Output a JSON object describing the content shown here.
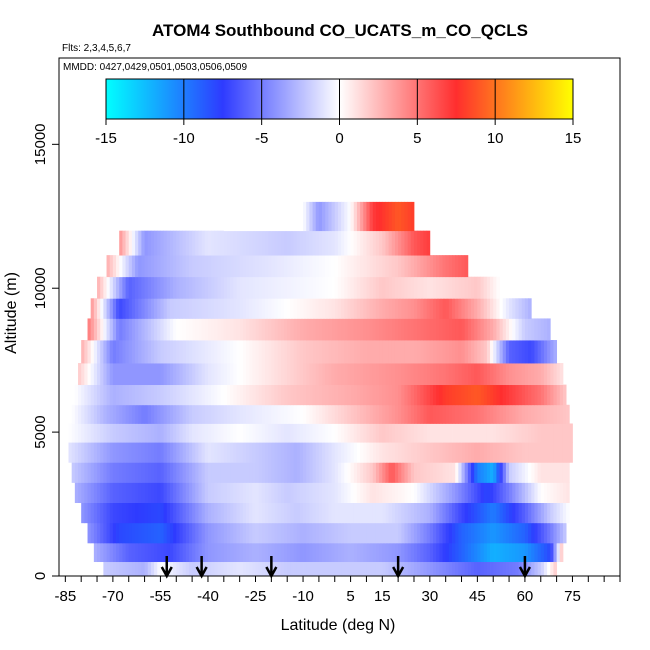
{
  "chart_data": {
    "type": "heatmap",
    "title": "ATOM4 Southbound CO_UCATS_m_CO_QCLS",
    "flights_label": "Flts: 2,3,4,5,6,7",
    "dates_label": "MMDD: 0427,0429,0501,0503,0506,0509",
    "xlabel": "Latitude (deg N)",
    "ylabel": "Altitude (m)",
    "xlim": [
      -87,
      90
    ],
    "ylim": [
      0,
      18000
    ],
    "x_ticks": [
      -85,
      -70,
      -55,
      -40,
      -25,
      -10,
      5,
      15,
      30,
      45,
      60,
      75
    ],
    "x_minor_step": 5,
    "y_ticks": [
      0,
      5000,
      10000,
      15000
    ],
    "colorbar": {
      "range": [
        -15,
        15
      ],
      "ticks": [
        -15,
        -10,
        -5,
        0,
        5,
        10,
        15
      ],
      "colors": [
        "#00ffff",
        "#2e3bff",
        "#ffffff",
        "#ff2e2e",
        "#ffff00"
      ]
    },
    "arrows_latitude": [
      -53,
      -42,
      -20,
      20,
      60
    ],
    "bands": [
      {
        "alt": 12500,
        "lat_min": -35,
        "lat_max": 25,
        "values": [
          [
            -35,
            0
          ],
          [
            -10,
            0
          ],
          [
            -5,
            -4
          ],
          [
            5,
            0
          ],
          [
            12,
            7
          ],
          [
            20,
            9
          ],
          [
            25,
            8
          ]
        ]
      },
      {
        "alt": 11500,
        "lat_min": -68,
        "lat_max": 30,
        "values": [
          [
            -68,
            4
          ],
          [
            -60,
            -4
          ],
          [
            -40,
            -1
          ],
          [
            -15,
            -2
          ],
          [
            0,
            -1
          ],
          [
            15,
            2
          ],
          [
            25,
            6
          ],
          [
            30,
            7
          ]
        ]
      },
      {
        "alt": 10800,
        "lat_min": -72,
        "lat_max": 42,
        "values": [
          [
            -72,
            3
          ],
          [
            -62,
            -4
          ],
          [
            -45,
            -2
          ],
          [
            -20,
            -1
          ],
          [
            0,
            0
          ],
          [
            20,
            2
          ],
          [
            35,
            5
          ],
          [
            42,
            6
          ]
        ]
      },
      {
        "alt": 10000,
        "lat_min": -75,
        "lat_max": 52,
        "values": [
          [
            -75,
            3
          ],
          [
            -65,
            -6
          ],
          [
            -50,
            -3
          ],
          [
            -30,
            -1
          ],
          [
            0,
            0
          ],
          [
            15,
            2
          ],
          [
            30,
            1
          ],
          [
            45,
            2
          ],
          [
            52,
            0
          ]
        ]
      },
      {
        "alt": 9300,
        "lat_min": -77,
        "lat_max": 62,
        "values": [
          [
            -77,
            4
          ],
          [
            -68,
            -7
          ],
          [
            -52,
            -2
          ],
          [
            -30,
            -1
          ],
          [
            0,
            1
          ],
          [
            15,
            3
          ],
          [
            25,
            4
          ],
          [
            35,
            6
          ],
          [
            45,
            3
          ],
          [
            55,
            -1
          ],
          [
            62,
            -3
          ]
        ]
      },
      {
        "alt": 8600,
        "lat_min": -78,
        "lat_max": 68,
        "values": [
          [
            -78,
            5
          ],
          [
            -68,
            -5
          ],
          [
            -50,
            0
          ],
          [
            -30,
            1
          ],
          [
            -10,
            3
          ],
          [
            10,
            4
          ],
          [
            25,
            5
          ],
          [
            40,
            6
          ],
          [
            50,
            3
          ],
          [
            60,
            -2
          ],
          [
            68,
            -3
          ]
        ]
      },
      {
        "alt": 7800,
        "lat_min": -80,
        "lat_max": 70,
        "values": [
          [
            -80,
            3
          ],
          [
            -70,
            -5
          ],
          [
            -55,
            -2
          ],
          [
            -30,
            0
          ],
          [
            -10,
            2
          ],
          [
            10,
            3
          ],
          [
            25,
            3
          ],
          [
            40,
            4
          ],
          [
            48,
            2
          ],
          [
            55,
            -6
          ],
          [
            62,
            -7
          ],
          [
            70,
            -3
          ]
        ]
      },
      {
        "alt": 7000,
        "lat_min": -81,
        "lat_max": 72,
        "values": [
          [
            -81,
            2
          ],
          [
            -70,
            -4
          ],
          [
            -55,
            -4
          ],
          [
            -40,
            -1
          ],
          [
            -20,
            1
          ],
          [
            0,
            3
          ],
          [
            20,
            4
          ],
          [
            35,
            5
          ],
          [
            45,
            6
          ],
          [
            55,
            4
          ],
          [
            65,
            3
          ],
          [
            72,
            1
          ]
        ]
      },
      {
        "alt": 6300,
        "lat_min": -82,
        "lat_max": 73,
        "values": [
          [
            -82,
            0
          ],
          [
            -70,
            -3
          ],
          [
            -55,
            -2
          ],
          [
            -35,
            0
          ],
          [
            -15,
            2
          ],
          [
            5,
            3
          ],
          [
            20,
            4
          ],
          [
            35,
            8
          ],
          [
            45,
            9
          ],
          [
            55,
            7
          ],
          [
            65,
            5
          ],
          [
            73,
            2
          ]
        ]
      },
      {
        "alt": 5600,
        "lat_min": -83,
        "lat_max": 74,
        "values": [
          [
            -83,
            0
          ],
          [
            -72,
            -3
          ],
          [
            -60,
            -5
          ],
          [
            -45,
            -2
          ],
          [
            -30,
            -1
          ],
          [
            -10,
            0
          ],
          [
            5,
            2
          ],
          [
            20,
            4
          ],
          [
            30,
            6
          ],
          [
            45,
            5
          ],
          [
            60,
            3
          ],
          [
            74,
            2
          ]
        ]
      },
      {
        "alt": 5000,
        "lat_min": -84,
        "lat_max": 75,
        "values": [
          [
            -84,
            0
          ],
          [
            -70,
            -2
          ],
          [
            -55,
            -3
          ],
          [
            -45,
            -1
          ],
          [
            -30,
            0
          ],
          [
            -15,
            -1
          ],
          [
            0,
            0
          ],
          [
            15,
            2
          ],
          [
            30,
            1
          ],
          [
            50,
            1
          ],
          [
            65,
            2
          ],
          [
            75,
            2
          ]
        ]
      },
      {
        "alt": 4300,
        "lat_min": -84,
        "lat_max": 75,
        "values": [
          [
            -84,
            -1
          ],
          [
            -70,
            -4
          ],
          [
            -55,
            -5
          ],
          [
            -40,
            -1
          ],
          [
            -25,
            -2
          ],
          [
            -12,
            -3
          ],
          [
            0,
            -1
          ],
          [
            15,
            1
          ],
          [
            30,
            2
          ],
          [
            45,
            3
          ],
          [
            60,
            2
          ],
          [
            75,
            2
          ]
        ]
      },
      {
        "alt": 3600,
        "lat_min": -83,
        "lat_max": 74,
        "values": [
          [
            -83,
            -2
          ],
          [
            -70,
            -5
          ],
          [
            -55,
            -6
          ],
          [
            -40,
            -2
          ],
          [
            -25,
            -2
          ],
          [
            -12,
            -3
          ],
          [
            0,
            -1
          ],
          [
            12,
            2
          ],
          [
            18,
            6
          ],
          [
            25,
            2
          ],
          [
            38,
            1
          ],
          [
            45,
            -10
          ],
          [
            50,
            -12
          ],
          [
            55,
            -2
          ],
          [
            65,
            1
          ],
          [
            74,
            1
          ]
        ]
      },
      {
        "alt": 2900,
        "lat_min": -82,
        "lat_max": 74,
        "values": [
          [
            -82,
            -3
          ],
          [
            -70,
            -6
          ],
          [
            -55,
            -7
          ],
          [
            -40,
            -2
          ],
          [
            -25,
            -1
          ],
          [
            -15,
            -2
          ],
          [
            0,
            -1
          ],
          [
            12,
            1
          ],
          [
            25,
            0
          ],
          [
            38,
            -4
          ],
          [
            48,
            -8
          ],
          [
            55,
            -5
          ],
          [
            65,
            0
          ],
          [
            74,
            1
          ]
        ]
      },
      {
        "alt": 2200,
        "lat_min": -80,
        "lat_max": 74,
        "values": [
          [
            -80,
            -4
          ],
          [
            -70,
            -7
          ],
          [
            -55,
            -8
          ],
          [
            -40,
            -3
          ],
          [
            -25,
            -1
          ],
          [
            -12,
            -2
          ],
          [
            0,
            -1
          ],
          [
            15,
            -1
          ],
          [
            30,
            -3
          ],
          [
            40,
            -7
          ],
          [
            50,
            -10
          ],
          [
            60,
            -6
          ],
          [
            68,
            -2
          ],
          [
            74,
            0
          ]
        ]
      },
      {
        "alt": 1500,
        "lat_min": -78,
        "lat_max": 73,
        "values": [
          [
            -78,
            -4
          ],
          [
            -68,
            -8
          ],
          [
            -55,
            -9
          ],
          [
            -40,
            -4
          ],
          [
            -25,
            -2
          ],
          [
            -10,
            -3
          ],
          [
            5,
            -2
          ],
          [
            20,
            -2
          ],
          [
            30,
            -5
          ],
          [
            40,
            -9
          ],
          [
            50,
            -11
          ],
          [
            60,
            -9
          ],
          [
            68,
            -5
          ],
          [
            73,
            -2
          ]
        ]
      },
      {
        "alt": 800,
        "lat_min": -76,
        "lat_max": 72,
        "values": [
          [
            -76,
            -3
          ],
          [
            -65,
            -6
          ],
          [
            -52,
            -7
          ],
          [
            -40,
            -4
          ],
          [
            -25,
            -3
          ],
          [
            -10,
            -4
          ],
          [
            5,
            -3
          ],
          [
            20,
            -4
          ],
          [
            30,
            -6
          ],
          [
            40,
            -9
          ],
          [
            50,
            -12
          ],
          [
            60,
            -11
          ],
          [
            68,
            -8
          ],
          [
            72,
            3
          ]
        ]
      },
      {
        "alt": 200,
        "lat_min": -73,
        "lat_max": 70,
        "values": [
          [
            -73,
            -2
          ],
          [
            -60,
            -3
          ],
          [
            -55,
            0
          ],
          [
            -45,
            -2
          ],
          [
            -30,
            -1
          ],
          [
            -15,
            -2
          ],
          [
            0,
            -2
          ],
          [
            15,
            -2
          ],
          [
            30,
            -4
          ],
          [
            45,
            -6
          ],
          [
            58,
            -5
          ],
          [
            65,
            -2
          ],
          [
            70,
            2
          ]
        ]
      }
    ]
  }
}
